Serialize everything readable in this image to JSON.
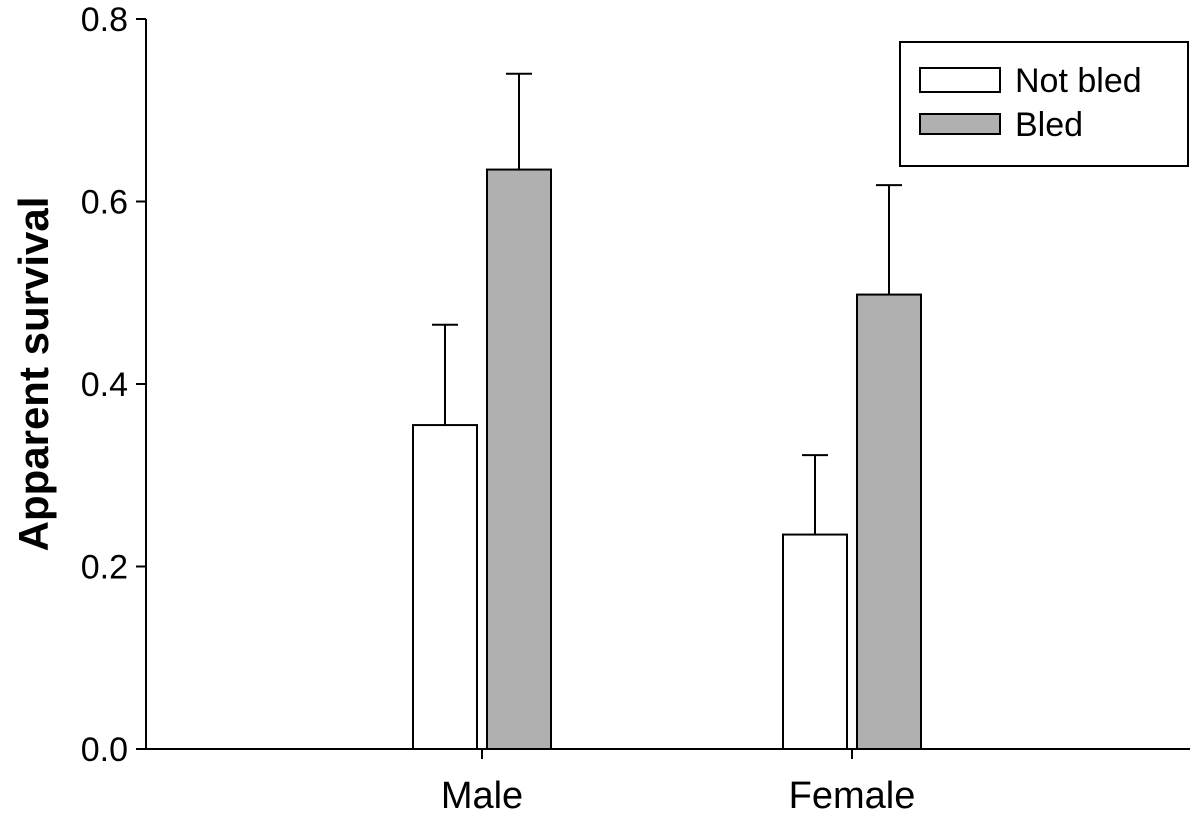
{
  "chart_data": {
    "type": "bar",
    "title": "",
    "xlabel": "",
    "ylabel": "Apparent survival",
    "ylim": [
      0,
      0.8
    ],
    "yticks": [
      "0.0",
      "0.2",
      "0.4",
      "0.6",
      "0.8"
    ],
    "categories": [
      "Male",
      "Female"
    ],
    "series": [
      {
        "name": "Not bled",
        "color": "#ffffff",
        "values": [
          0.355,
          0.235
        ],
        "errors": [
          0.11,
          0.087
        ]
      },
      {
        "name": "Bled",
        "color": "#b0b0b0",
        "values": [
          0.635,
          0.498
        ],
        "errors": [
          0.105,
          0.12
        ]
      }
    ],
    "legend": {
      "position": "top-right"
    }
  }
}
